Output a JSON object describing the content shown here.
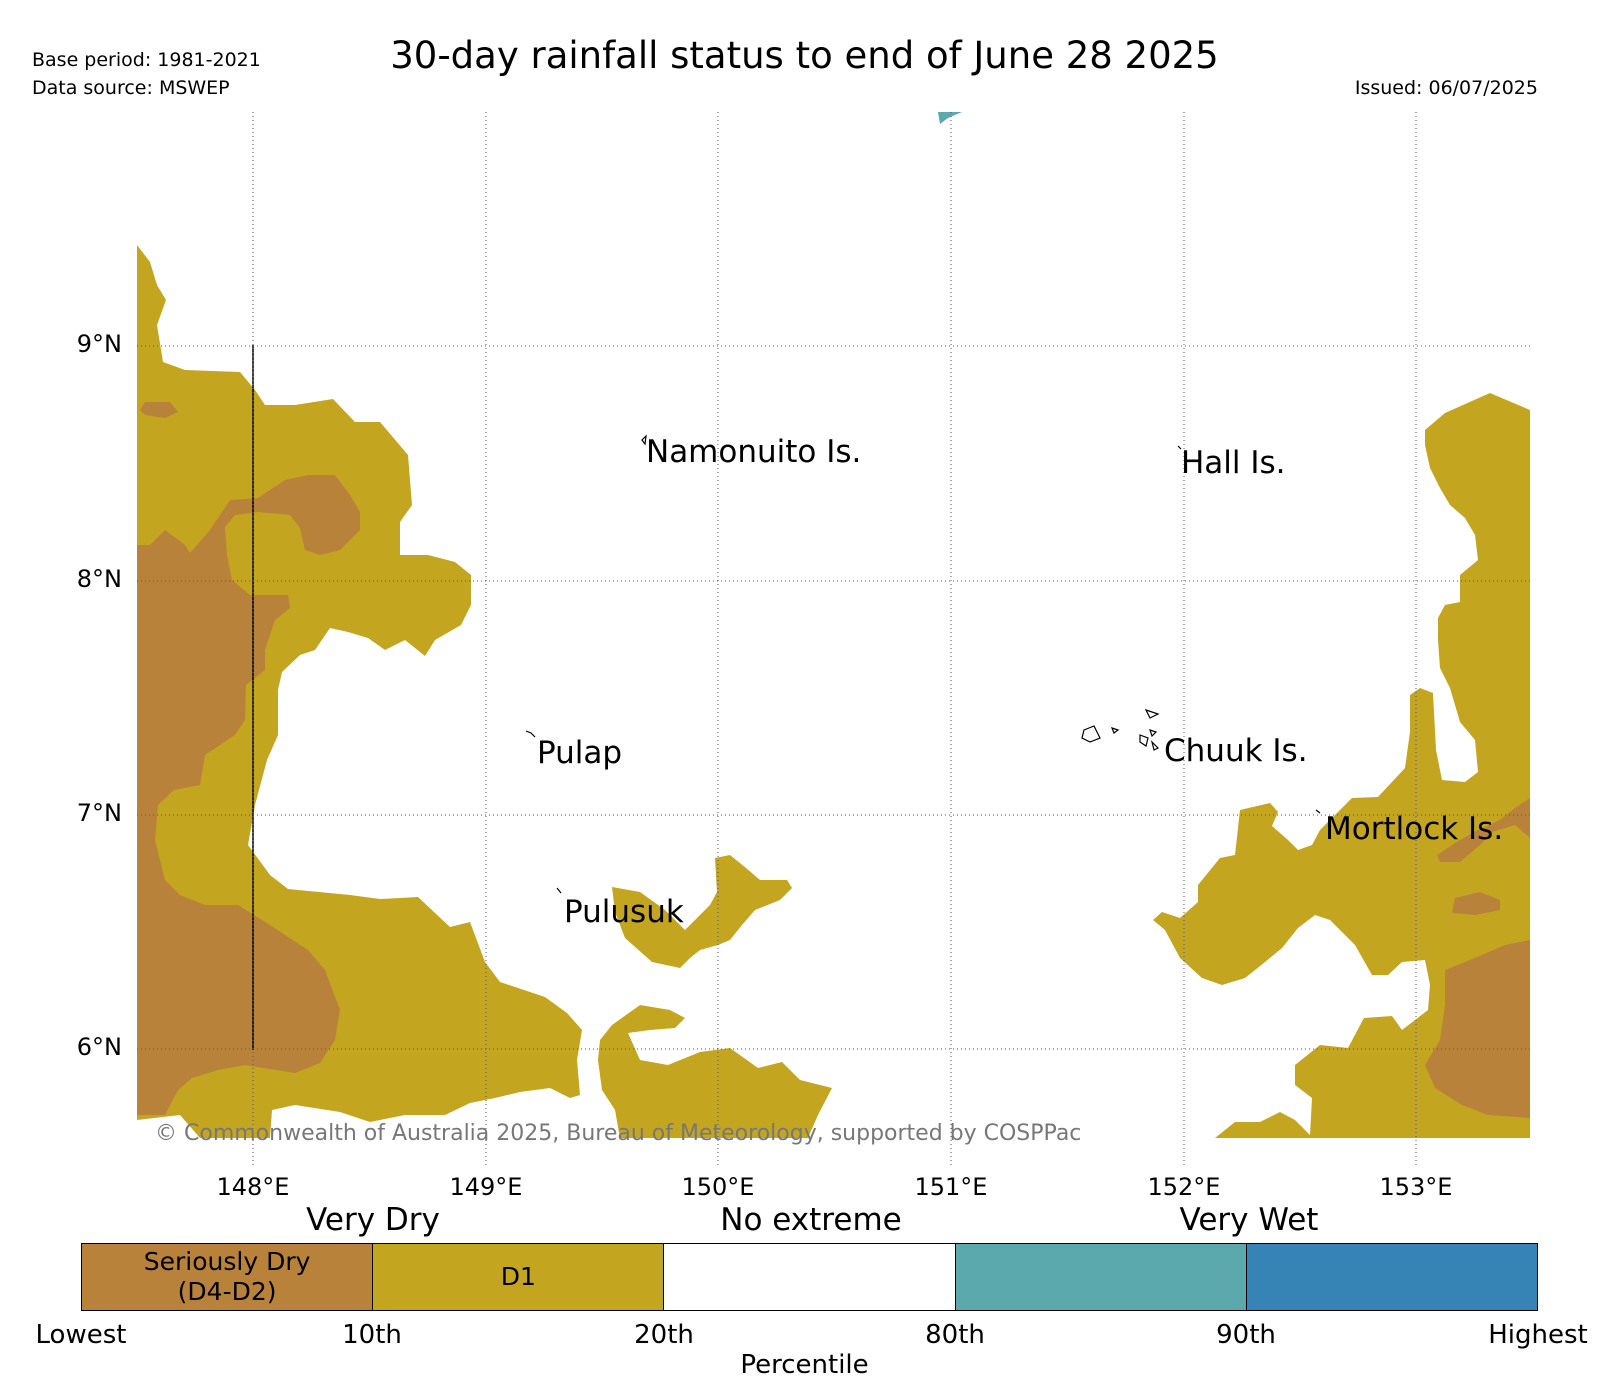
{
  "header": {
    "title": "30-day rainfall status to end of June 28 2025",
    "base_period": "Base period: 1981-2021",
    "data_source": "Data source: MSWEP",
    "issued": "Issued: 06/07/2025"
  },
  "axes": {
    "lat_ticks": [
      "9°N",
      "8°N",
      "7°N",
      "6°N"
    ],
    "lon_ticks": [
      "148°E",
      "149°E",
      "150°E",
      "151°E",
      "152°E",
      "153°E"
    ],
    "grid": true
  },
  "places": [
    {
      "name": "Namonuito Is."
    },
    {
      "name": "Hall Is."
    },
    {
      "name": "Pulap"
    },
    {
      "name": "Chuuk Is."
    },
    {
      "name": "Mortlock Is."
    },
    {
      "name": "Pulusuk"
    }
  ],
  "copyright": "© Commonwealth of Australia 2025, Bureau of Meteorology, supported by COSPPac",
  "legend": {
    "categories": [
      "Very Dry",
      "No extreme",
      "Very Wet"
    ],
    "segments": [
      {
        "label": "Seriously Dry\n(D4-D2)",
        "color": "#b8823b"
      },
      {
        "label": "D1",
        "color": "#c4a520"
      },
      {
        "label": "",
        "color": "#ffffff"
      },
      {
        "label": "",
        "color": "#5ca9ad"
      },
      {
        "label": "",
        "color": "#3584b5"
      }
    ],
    "tick_labels": [
      "Lowest",
      "10th",
      "20th",
      "80th",
      "90th",
      "Highest"
    ],
    "axis_label": "Percentile"
  },
  "colors": {
    "seriously_dry": "#b8823b",
    "d1": "#c4a520",
    "wet": "#5ca9ad",
    "very_wet": "#3584b5"
  }
}
